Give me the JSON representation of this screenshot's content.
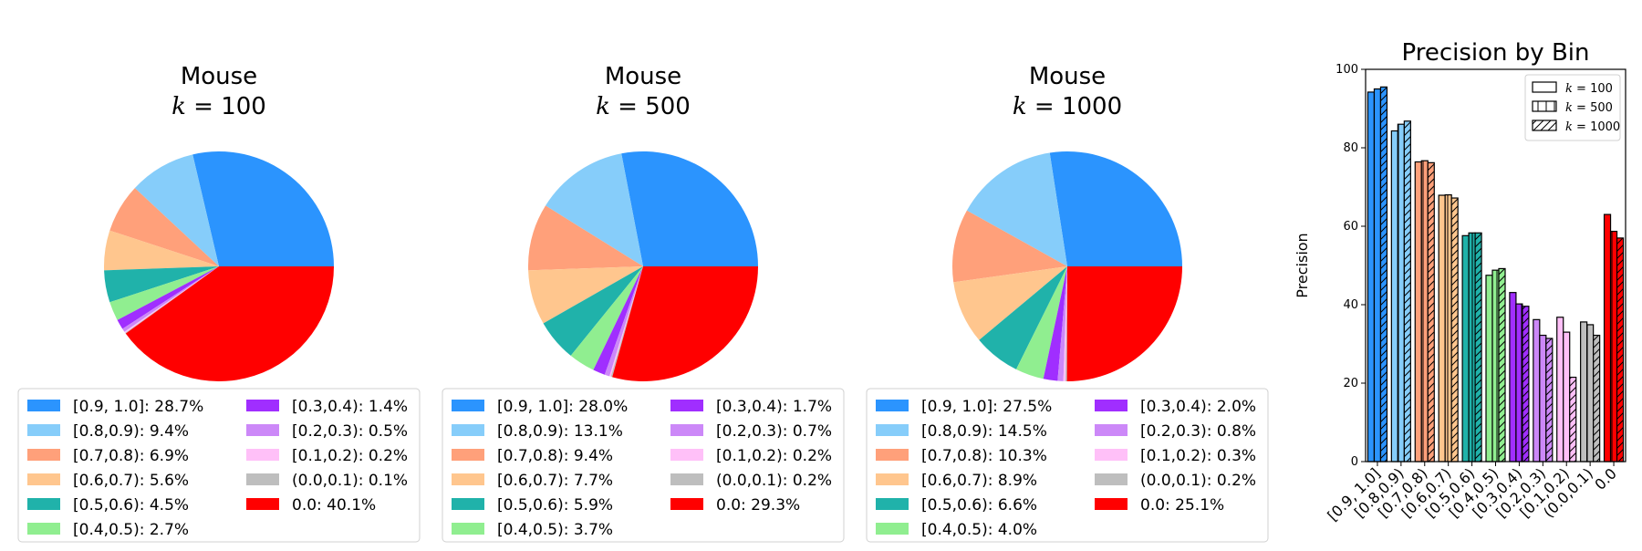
{
  "chart_data": [
    {
      "type": "pie",
      "title": "Mouse",
      "subtitle_var": "k",
      "subtitle_val": "100",
      "subtitle": "k = 100",
      "slices": [
        {
          "label": "[0.9, 1.0]",
          "value": 28.7,
          "legend": "[0.9, 1.0]: 28.7%",
          "color": "#2b94fe"
        },
        {
          "label": "[0.8,0.9)",
          "value": 9.4,
          "legend": "[0.8,0.9): 9.4%",
          "color": "#86cdfa"
        },
        {
          "label": "[0.7,0.8)",
          "value": 6.9,
          "legend": "[0.7,0.8): 6.9%",
          "color": "#ffa07a"
        },
        {
          "label": "[0.6,0.7)",
          "value": 5.6,
          "legend": "[0.6,0.7): 5.6%",
          "color": "#ffc68e"
        },
        {
          "label": "[0.5,0.6)",
          "value": 4.5,
          "legend": "[0.5,0.6): 4.5%",
          "color": "#20b2aa"
        },
        {
          "label": "[0.4,0.5)",
          "value": 2.7,
          "legend": "[0.4,0.5): 2.7%",
          "color": "#90ee90"
        },
        {
          "label": "[0.3,0.4)",
          "value": 1.4,
          "legend": "[0.3,0.4): 1.4%",
          "color": "#a02eff"
        },
        {
          "label": "[0.2,0.3)",
          "value": 0.5,
          "legend": "[0.2,0.3): 0.5%",
          "color": "#cc88f8"
        },
        {
          "label": "[0.1,0.2)",
          "value": 0.2,
          "legend": "[0.1,0.2): 0.2%",
          "color": "#ffc0f8"
        },
        {
          "label": "(0.0,0.1)",
          "value": 0.1,
          "legend": "(0.0,0.1): 0.1%",
          "color": "#bebebe"
        },
        {
          "label": "0.0",
          "value": 40.1,
          "legend": "0.0: 40.1%",
          "color": "#ff0000"
        }
      ]
    },
    {
      "type": "pie",
      "title": "Mouse",
      "subtitle_var": "k",
      "subtitle_val": "500",
      "subtitle": "k = 500",
      "slices": [
        {
          "label": "[0.9, 1.0]",
          "value": 28.0,
          "legend": "[0.9, 1.0]: 28.0%",
          "color": "#2b94fe"
        },
        {
          "label": "[0.8,0.9)",
          "value": 13.1,
          "legend": "[0.8,0.9): 13.1%",
          "color": "#86cdfa"
        },
        {
          "label": "[0.7,0.8)",
          "value": 9.4,
          "legend": "[0.7,0.8): 9.4%",
          "color": "#ffa07a"
        },
        {
          "label": "[0.6,0.7)",
          "value": 7.7,
          "legend": "[0.6,0.7): 7.7%",
          "color": "#ffc68e"
        },
        {
          "label": "[0.5,0.6)",
          "value": 5.9,
          "legend": "[0.5,0.6): 5.9%",
          "color": "#20b2aa"
        },
        {
          "label": "[0.4,0.5)",
          "value": 3.7,
          "legend": "[0.4,0.5): 3.7%",
          "color": "#90ee90"
        },
        {
          "label": "[0.3,0.4)",
          "value": 1.7,
          "legend": "[0.3,0.4): 1.7%",
          "color": "#a02eff"
        },
        {
          "label": "[0.2,0.3)",
          "value": 0.7,
          "legend": "[0.2,0.3): 0.7%",
          "color": "#cc88f8"
        },
        {
          "label": "[0.1,0.2)",
          "value": 0.2,
          "legend": "[0.1,0.2): 0.2%",
          "color": "#ffc0f8"
        },
        {
          "label": "(0.0,0.1)",
          "value": 0.2,
          "legend": "(0.0,0.1): 0.2%",
          "color": "#bebebe"
        },
        {
          "label": "0.0",
          "value": 29.3,
          "legend": "0.0: 29.3%",
          "color": "#ff0000"
        }
      ]
    },
    {
      "type": "pie",
      "title": "Mouse",
      "subtitle_var": "k",
      "subtitle_val": "1000",
      "subtitle": "k = 1000",
      "slices": [
        {
          "label": "[0.9, 1.0]",
          "value": 27.5,
          "legend": "[0.9, 1.0]: 27.5%",
          "color": "#2b94fe"
        },
        {
          "label": "[0.8,0.9)",
          "value": 14.5,
          "legend": "[0.8,0.9): 14.5%",
          "color": "#86cdfa"
        },
        {
          "label": "[0.7,0.8)",
          "value": 10.3,
          "legend": "[0.7,0.8): 10.3%",
          "color": "#ffa07a"
        },
        {
          "label": "[0.6,0.7)",
          "value": 8.9,
          "legend": "[0.6,0.7): 8.9%",
          "color": "#ffc68e"
        },
        {
          "label": "[0.5,0.6)",
          "value": 6.6,
          "legend": "[0.5,0.6): 6.6%",
          "color": "#20b2aa"
        },
        {
          "label": "[0.4,0.5)",
          "value": 4.0,
          "legend": "[0.4,0.5): 4.0%",
          "color": "#90ee90"
        },
        {
          "label": "[0.3,0.4)",
          "value": 2.0,
          "legend": "[0.3,0.4): 2.0%",
          "color": "#a02eff"
        },
        {
          "label": "[0.2,0.3)",
          "value": 0.8,
          "legend": "[0.2,0.3): 0.8%",
          "color": "#cc88f8"
        },
        {
          "label": "[0.1,0.2)",
          "value": 0.3,
          "legend": "[0.1,0.2): 0.3%",
          "color": "#ffc0f8"
        },
        {
          "label": "(0.0,0.1)",
          "value": 0.2,
          "legend": "(0.0,0.1): 0.2%",
          "color": "#bebebe"
        },
        {
          "label": "0.0",
          "value": 25.1,
          "legend": "0.0: 25.1%",
          "color": "#ff0000"
        }
      ]
    },
    {
      "type": "bar",
      "title": "Precision by Bin",
      "ylabel": "Precision",
      "xlabel": "",
      "ylim": [
        0,
        100
      ],
      "yticks": [
        0,
        20,
        40,
        60,
        80,
        100
      ],
      "legend_position": "top-right",
      "categories": [
        "[0.9, 1.0]",
        "[0.8,0.9)",
        "[0.7,0.8)",
        "[0.6,0.7)",
        "[0.5,0.6)",
        "[0.4,0.5)",
        "[0.3,0.4)",
        "[0.2,0.3)",
        "[0.1,0.2)",
        "(0.0,0.1)",
        "0.0"
      ],
      "category_colors": [
        "#2b94fe",
        "#86cdfa",
        "#ffa07a",
        "#ffc68e",
        "#20b2aa",
        "#90ee90",
        "#a02eff",
        "#cc88f8",
        "#ffc0f8",
        "#bebebe",
        "#ff0000"
      ],
      "series": [
        {
          "name": "k = 100",
          "var": "k",
          "val": "100",
          "hatch": "none",
          "values": [
            94.2,
            84.3,
            76.4,
            67.9,
            57.6,
            47.5,
            43.1,
            36.2,
            36.8,
            35.6,
            63.0
          ]
        },
        {
          "name": "k = 500",
          "var": "k",
          "val": "500",
          "hatch": "vertical",
          "values": [
            95.0,
            86.0,
            76.7,
            68.0,
            58.3,
            48.8,
            40.2,
            32.2,
            33.0,
            34.9,
            58.7
          ]
        },
        {
          "name": "k = 1000",
          "var": "k",
          "val": "1000",
          "hatch": "diagonal",
          "values": [
            95.5,
            86.8,
            76.2,
            67.2,
            58.3,
            49.2,
            39.6,
            31.4,
            21.5,
            32.2,
            57.0
          ]
        }
      ]
    }
  ]
}
